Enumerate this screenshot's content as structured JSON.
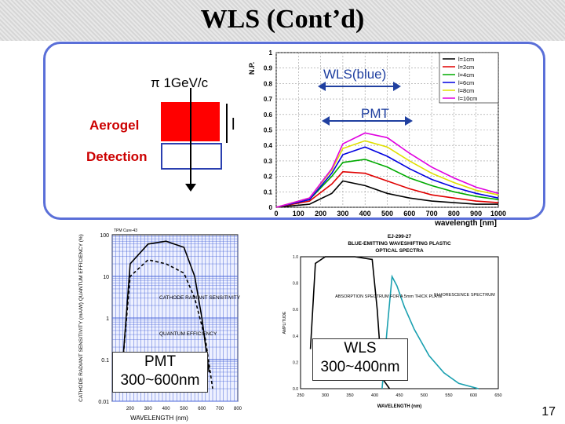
{
  "slide": {
    "title": "WLS (Cont’d)",
    "page_number": "17",
    "pi_label": "π 1GeV/c",
    "aerogel_label": "Aerogel",
    "detection_label": "Detection",
    "l_label": "l",
    "wls_blue_label": "WLS(blue)",
    "pmt_label": "PMT",
    "pmt_box": "PMT\n300~600nm",
    "wls_box": "WLS\n300~400nm"
  },
  "colors": {
    "frame": "#5a6fd8",
    "aerogel": "#ff0000",
    "accent_red": "#cc0000",
    "arrow_blue": "#2040a0"
  },
  "chart_data": [
    {
      "type": "line",
      "title": "",
      "xlabel": "wavelength [nm]",
      "ylabel": "N.P.",
      "xlim": [
        0,
        1000
      ],
      "ylim": [
        0,
        1
      ],
      "x_ticks": [
        "0",
        "100",
        "200",
        "300",
        "400",
        "500",
        "600",
        "700",
        "800",
        "900",
        "1000"
      ],
      "y_ticks": [
        "0",
        "0.1",
        "0.2",
        "0.3",
        "0.4",
        "0.5",
        "0.6",
        "0.7",
        "0.8",
        "0.9",
        "1"
      ],
      "series": [
        {
          "name": "l=1cm",
          "color": "#000000",
          "x": [
            0,
            150,
            250,
            300,
            400,
            500,
            600,
            700,
            800,
            900,
            1000
          ],
          "y": [
            0,
            0.02,
            0.09,
            0.17,
            0.14,
            0.09,
            0.06,
            0.04,
            0.03,
            0.02,
            0.02
          ]
        },
        {
          "name": "l=2cm",
          "color": "#e00000",
          "x": [
            0,
            150,
            250,
            300,
            400,
            500,
            600,
            700,
            800,
            900,
            1000
          ],
          "y": [
            0,
            0.04,
            0.15,
            0.23,
            0.22,
            0.17,
            0.12,
            0.08,
            0.06,
            0.04,
            0.03
          ]
        },
        {
          "name": "l=4cm",
          "color": "#00aa00",
          "x": [
            0,
            150,
            250,
            300,
            400,
            500,
            600,
            700,
            800,
            900,
            1000
          ],
          "y": [
            0,
            0.05,
            0.2,
            0.29,
            0.31,
            0.26,
            0.19,
            0.14,
            0.1,
            0.07,
            0.05
          ]
        },
        {
          "name": "l=6cm",
          "color": "#0000e0",
          "x": [
            0,
            150,
            250,
            300,
            400,
            500,
            600,
            700,
            800,
            900,
            1000
          ],
          "y": [
            0,
            0.05,
            0.22,
            0.34,
            0.39,
            0.33,
            0.25,
            0.18,
            0.13,
            0.09,
            0.06
          ]
        },
        {
          "name": "l=8cm",
          "color": "#e0e000",
          "x": [
            0,
            150,
            250,
            300,
            400,
            500,
            600,
            700,
            800,
            900,
            1000
          ],
          "y": [
            0,
            0.06,
            0.24,
            0.38,
            0.43,
            0.39,
            0.3,
            0.22,
            0.16,
            0.11,
            0.08
          ]
        },
        {
          "name": "l=10cm",
          "color": "#e000e0",
          "x": [
            0,
            150,
            250,
            300,
            400,
            500,
            600,
            700,
            800,
            900,
            1000
          ],
          "y": [
            0,
            0.06,
            0.25,
            0.41,
            0.48,
            0.45,
            0.35,
            0.26,
            0.19,
            0.13,
            0.09
          ]
        }
      ]
    },
    {
      "type": "line",
      "title": "",
      "xlabel": "WAVELENGTH (nm)",
      "ylabel": "CATHODE RADIANT SENSITIVITY (mA/W) QUANTUM EFFICIENCY (%)",
      "caption": "TPM Cure-43",
      "xlim": [
        100,
        800
      ],
      "ylim_log": [
        0.01,
        100
      ],
      "x_ticks": [
        "200",
        "300",
        "400",
        "500",
        "600",
        "700",
        "800"
      ],
      "y_ticks": [
        "100",
        "10",
        "1",
        "0.1",
        "0.01"
      ],
      "annotations": [
        "CATHODE RADIANT SENSITIVITY",
        "QUANTUM EFFICIENCY"
      ],
      "series": [
        {
          "name": "Cathode radiant sensitivity",
          "style": "solid",
          "x": [
            160,
            200,
            300,
            400,
            500,
            560,
            600,
            640
          ],
          "y": [
            0.1,
            20,
            60,
            70,
            50,
            10,
            1,
            0.05
          ]
        },
        {
          "name": "Quantum efficiency",
          "style": "dashed",
          "x": [
            160,
            200,
            300,
            400,
            500,
            560,
            620,
            660
          ],
          "y": [
            0.1,
            10,
            25,
            20,
            12,
            3,
            0.3,
            0.02
          ]
        }
      ]
    },
    {
      "type": "line",
      "title": "EJ-299-27\nBLUE-EMITTING WAVESHIFTING PLASTIC\nOPTICAL SPECTRA",
      "xlabel": "WAVELENGTH (nm)",
      "ylabel": "AMPLITUDE",
      "xlim": [
        250,
        650
      ],
      "ylim": [
        0,
        1
      ],
      "x_ticks": [
        "250",
        "300",
        "350",
        "400",
        "450",
        "500",
        "550",
        "600",
        "650"
      ],
      "y_ticks": [
        "0.0",
        "0.2",
        "0.4",
        "0.6",
        "0.8",
        "1.0"
      ],
      "annotations": [
        "ABSORPTION SPECTRUM FOR A 5mm THICK PLATE",
        "FLUORESCENCE SPECTRUM"
      ],
      "series": [
        {
          "name": "Absorption",
          "color": "#000000",
          "x": [
            270,
            280,
            300,
            360,
            395,
            405,
            415,
            430
          ],
          "y": [
            0.3,
            0.95,
            1,
            1,
            0.98,
            0.6,
            0.08,
            0
          ]
        },
        {
          "name": "Fluorescence",
          "color": "#1aa0b0",
          "x": [
            415,
            425,
            435,
            445,
            460,
            480,
            510,
            540,
            570,
            610
          ],
          "y": [
            0,
            0.45,
            0.85,
            0.78,
            0.62,
            0.45,
            0.25,
            0.12,
            0.04,
            0
          ]
        }
      ]
    }
  ]
}
